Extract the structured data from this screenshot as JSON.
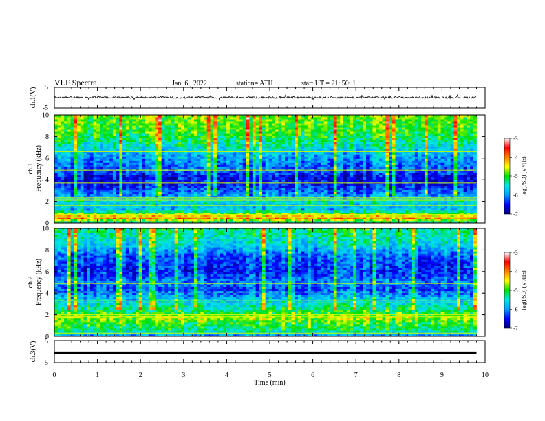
{
  "header": {
    "title": "VLF  Spectra",
    "date": "Jan.  6  , 2022",
    "station": "station= ATH",
    "start_ut": "start  UT  =    21: 50: 1"
  },
  "colorbar": {
    "label": "log(PSD) (V²/Hz)",
    "ticks": [
      "-3",
      "-4",
      "-5",
      "-6",
      "-7"
    ],
    "colors": [
      "#000080",
      "#0000ff",
      "#00a0ff",
      "#00e6e6",
      "#00e000",
      "#ffff00",
      "#ff8000",
      "#ff0000",
      "#ffffff"
    ]
  },
  "chart_data": [
    {
      "name": "ch1-waveform",
      "type": "line",
      "ylabel": "ch.1(V)",
      "ylim": [
        -5,
        5
      ],
      "yticks": [
        "5",
        "-5"
      ],
      "xlim": [
        0,
        10
      ],
      "trace": "noisy voltage trace centered slightly above 0 V"
    },
    {
      "name": "ch1-spectrogram",
      "type": "heatmap",
      "ylabel": "ch.1",
      "ylabel2": "Frequency  (kHz)",
      "ylim": [
        0,
        10
      ],
      "yticks": [
        "0",
        "2",
        "4",
        "6",
        "8",
        "10"
      ],
      "xlim": [
        0,
        10
      ],
      "zlim": [
        -7,
        -3
      ],
      "data_end_min": 9.8,
      "profile": [
        {
          "f": 0.0,
          "v": -5.6
        },
        {
          "f": 0.5,
          "v": -4.0
        },
        {
          "f": 0.8,
          "v": -4.6
        },
        {
          "f": 1.2,
          "v": -5.8
        },
        {
          "f": 2.0,
          "v": -5.5
        },
        {
          "f": 2.6,
          "v": -6.0
        },
        {
          "f": 3.5,
          "v": -6.5
        },
        {
          "f": 4.2,
          "v": -6.6
        },
        {
          "f": 4.8,
          "v": -6.2
        },
        {
          "f": 5.5,
          "v": -6.1
        },
        {
          "f": 6.5,
          "v": -5.8
        },
        {
          "f": 7.5,
          "v": -5.3
        },
        {
          "f": 8.5,
          "v": -5.0
        },
        {
          "f": 10.0,
          "v": -4.8
        }
      ],
      "lines": [
        0.5,
        0.8,
        1.6,
        2.1,
        2.3,
        3.7,
        4.9,
        6.6
      ]
    },
    {
      "name": "ch2-spectrogram",
      "type": "heatmap",
      "ylabel": "ch.2",
      "ylabel2": "Frequency  (kHz)",
      "ylim": [
        0,
        10
      ],
      "yticks": [
        "0",
        "2",
        "4",
        "6",
        "8",
        "10"
      ],
      "xlim": [
        0,
        10
      ],
      "zlim": [
        -7,
        -3
      ],
      "data_end_min": 9.8,
      "profile": [
        {
          "f": 0.0,
          "v": -6.0
        },
        {
          "f": 0.6,
          "v": -5.2
        },
        {
          "f": 1.2,
          "v": -5.0
        },
        {
          "f": 1.8,
          "v": -4.6
        },
        {
          "f": 2.2,
          "v": -5.0
        },
        {
          "f": 3.0,
          "v": -5.5
        },
        {
          "f": 3.6,
          "v": -5.8
        },
        {
          "f": 4.4,
          "v": -6.3
        },
        {
          "f": 5.0,
          "v": -6.0
        },
        {
          "f": 6.0,
          "v": -6.4
        },
        {
          "f": 7.5,
          "v": -6.2
        },
        {
          "f": 8.5,
          "v": -5.6
        },
        {
          "f": 10.0,
          "v": -5.2
        }
      ],
      "lines": [
        0.3,
        1.8,
        2.0,
        3.1,
        3.3,
        4.1,
        4.9
      ]
    },
    {
      "name": "ch3-waveform",
      "type": "line",
      "ylabel": "ch.3(V)",
      "ylim": [
        -5,
        5
      ],
      "yticks": [
        "5",
        "-5"
      ],
      "xlim": [
        0,
        10
      ],
      "trace": "flat thick line near -0.6 V",
      "level": -0.6
    }
  ],
  "xaxis": {
    "label": "Time  (min)",
    "ticks": [
      "0",
      "1",
      "2",
      "3",
      "4",
      "5",
      "6",
      "7",
      "8",
      "9",
      "10"
    ]
  }
}
